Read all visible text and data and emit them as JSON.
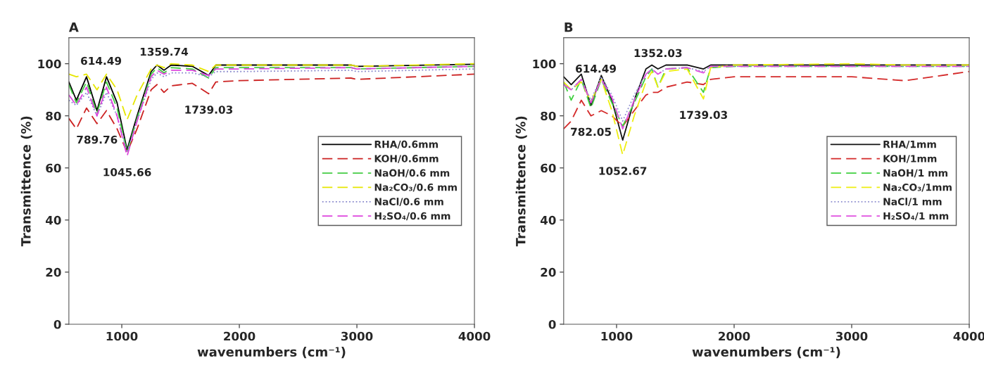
{
  "chart_data": [
    {
      "type": "line",
      "title": "A",
      "xlabel": "wavenumbers (cm⁻¹)",
      "ylabel": "Transmittence (%)",
      "xlim": [
        550,
        4000
      ],
      "xticks": [
        1000,
        2000,
        3000,
        4000
      ],
      "ylim": [
        0,
        110
      ],
      "yticks": [
        0,
        20,
        40,
        60,
        80,
        100
      ],
      "grid": false,
      "legend": "right",
      "marker": "none",
      "x": [
        550,
        614,
        700,
        789,
        870,
        960,
        1045,
        1130,
        1250,
        1300,
        1359,
        1420,
        1600,
        1739,
        1800,
        2000,
        2950,
        3000,
        4000
      ],
      "series": [
        {
          "name": "RHA/0.6mm",
          "color": "#000000",
          "line_style": "solid",
          "values": [
            93,
            86,
            95,
            82,
            95,
            85,
            67,
            80,
            97,
            99.5,
            97.5,
            99.5,
            99,
            95.5,
            99.5,
            99.5,
            99.5,
            99,
            99.8
          ]
        },
        {
          "name": "KOH/0.6mm",
          "color": "#cc2222",
          "line_style": "dashed",
          "values": [
            79,
            75,
            83,
            77,
            82,
            75,
            66,
            75,
            90,
            92,
            89,
            91.5,
            92.5,
            88.5,
            93,
            93.5,
            94.5,
            94,
            96
          ]
        },
        {
          "name": "NaOH/0.6 mm",
          "color": "#44cc44",
          "line_style": "dashed",
          "values": [
            92,
            85,
            93,
            81,
            93,
            83,
            66,
            79,
            96,
            98.5,
            96.5,
            98.5,
            98,
            94.5,
            98.5,
            98.5,
            98.5,
            98,
            99
          ]
        },
        {
          "name": "Na₂CO₃/0.6 mm",
          "color": "#e6e600",
          "line_style": "dashed",
          "values": [
            96,
            95,
            96,
            90,
            96,
            90,
            78.5,
            88,
            98,
            99.5,
            98.5,
            100,
            99.5,
            97,
            99.5,
            99.5,
            99.5,
            99,
            100
          ]
        },
        {
          "name": "NaCl/0.6 mm",
          "color": "#8888cc",
          "line_style": "dotted",
          "values": [
            86,
            84,
            89,
            80,
            89,
            80,
            66,
            78,
            94,
            96.5,
            95,
            96.5,
            96.5,
            95,
            97,
            97,
            97.5,
            97,
            98
          ]
        },
        {
          "name": "H₂SO₄/0.6 mm",
          "color": "#dd44dd",
          "line_style": "dashed",
          "values": [
            88,
            84,
            91,
            80,
            91,
            80,
            64.5,
            78,
            95,
            97.5,
            96,
            97.5,
            97.5,
            95.5,
            98,
            98,
            98.5,
            98,
            99
          ]
        }
      ],
      "annotations": [
        {
          "text": "614.49",
          "x": 614,
          "y": 95
        },
        {
          "text": "1359.74",
          "x": 1359,
          "y": 98.5
        },
        {
          "text": "789.76",
          "x": 789,
          "y": 77
        },
        {
          "text": "1045.66",
          "x": 1045,
          "y": 64.5
        },
        {
          "text": "1739.03",
          "x": 1739,
          "y": 88.5
        }
      ]
    },
    {
      "type": "line",
      "title": "B",
      "xlabel": "wavenumbers (cm⁻¹)",
      "ylabel": "Transmittence (%)",
      "xlim": [
        550,
        4000
      ],
      "xticks": [
        1000,
        2000,
        3000,
        4000
      ],
      "ylim": [
        0,
        110
      ],
      "yticks": [
        0,
        20,
        40,
        60,
        80,
        100
      ],
      "grid": false,
      "legend": "right",
      "marker": "none",
      "x": [
        550,
        614,
        700,
        782,
        870,
        960,
        1052,
        1150,
        1250,
        1300,
        1352,
        1420,
        1600,
        1739,
        1800,
        2000,
        3000,
        3450,
        4000
      ],
      "series": [
        {
          "name": "RHA/1mm",
          "color": "#111111",
          "line_style": "solid",
          "values": [
            95,
            92,
            96,
            84,
            95.5,
            86,
            70.7,
            86,
            98,
            99.5,
            98,
            99.5,
            99.5,
            98,
            99.5,
            99.5,
            99.5,
            99.5,
            99.5
          ]
        },
        {
          "name": "KOH/1mm",
          "color": "#d42a2a",
          "line_style": "dashed",
          "values": [
            75,
            78,
            86,
            80,
            82,
            80,
            76,
            82,
            88,
            89,
            89,
            91,
            93,
            92,
            94,
            95,
            95,
            93.5,
            97
          ]
        },
        {
          "name": "NaOH/1 mm",
          "color": "#3fd03f",
          "line_style": "dashed",
          "values": [
            93,
            86,
            94,
            83,
            94,
            85,
            76,
            85,
            95,
            98,
            91,
            98,
            98.5,
            89,
            98.5,
            99,
            99,
            99,
            99
          ]
        },
        {
          "name": "Na₂CO₃/1mm",
          "color": "#eeee11",
          "line_style": "dashed",
          "values": [
            93,
            90,
            93,
            85.5,
            94,
            82,
            65,
            80,
            93,
            97,
            91,
            97,
            98,
            86.5,
            98.5,
            99.5,
            100,
            99.5,
            99.5
          ]
        },
        {
          "name": "NaCl/1 mm",
          "color": "#9090d0",
          "line_style": "dotted",
          "values": [
            92,
            90,
            94,
            86,
            95,
            88,
            78,
            88,
            96,
            98,
            96,
            98,
            98.5,
            97,
            99,
            99,
            99,
            99,
            99
          ]
        },
        {
          "name": "H₂SO₄/1 mm",
          "color": "#e050e0",
          "line_style": "dashed",
          "values": [
            92,
            90,
            94,
            85,
            94,
            87,
            75,
            86,
            96,
            98,
            96,
            98,
            98.5,
            96.5,
            99,
            99,
            99,
            99,
            99
          ]
        }
      ],
      "annotations": [
        {
          "text": "614.49",
          "x": 614,
          "y": 92
        },
        {
          "text": "1352.03",
          "x": 1352,
          "y": 98
        },
        {
          "text": "782.05",
          "x": 782,
          "y": 80
        },
        {
          "text": "1052.67",
          "x": 1052,
          "y": 65
        },
        {
          "text": "1739.03",
          "x": 1739,
          "y": 86.5
        }
      ]
    }
  ]
}
